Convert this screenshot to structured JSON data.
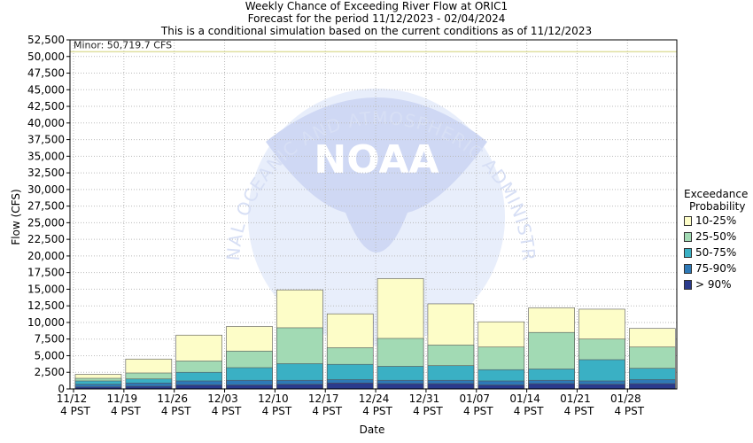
{
  "title_lines": [
    "Weekly Chance of Exceeding River Flow at ORIC1",
    "Forecast for the period 11/12/2023 - 02/04/2024",
    "This is a conditional simulation based on the current conditions as of 11/12/2023"
  ],
  "watermark": {
    "arc_text_top": "NATIONAL OCEANIC AND ATMOSPHERIC ADMINISTRATION",
    "center_text": "NOAA"
  },
  "chart_data": {
    "type": "bar",
    "stacked": true,
    "xlabel": "Date",
    "ylabel": "Flow (CFS)",
    "ylim": [
      0,
      52500
    ],
    "ytick_step": 2500,
    "grid": true,
    "categories": [
      "11/12",
      "11/19",
      "11/26",
      "12/03",
      "12/10",
      "12/17",
      "12/24",
      "12/31",
      "01/07",
      "01/14",
      "01/21",
      "01/28"
    ],
    "x_tick_labels": [
      [
        "11/12",
        "4 PST"
      ],
      [
        "11/19",
        "4 PST"
      ],
      [
        "11/26",
        "4 PST"
      ],
      [
        "12/03",
        "4 PST"
      ],
      [
        "12/10",
        "4 PST"
      ],
      [
        "12/17",
        "4 PST"
      ],
      [
        "12/24",
        "4 PST"
      ],
      [
        "12/31",
        "4 PST"
      ],
      [
        "01/07",
        "4 PST"
      ],
      [
        "01/14",
        "4 PST"
      ],
      [
        "01/21",
        "4 PST"
      ],
      [
        "01/28",
        "4 PST"
      ]
    ],
    "series": [
      {
        "name": "> 90%",
        "color": "#2a3a8c",
        "values": [
          300,
          400,
          600,
          600,
          700,
          900,
          800,
          800,
          600,
          800,
          700,
          800
        ]
      },
      {
        "name": "75-90%",
        "color": "#2e79b6",
        "values": [
          700,
          900,
          1200,
          1300,
          1300,
          1400,
          1300,
          1300,
          1200,
          1300,
          1200,
          1400
        ]
      },
      {
        "name": "50-75%",
        "color": "#3ab0c4",
        "values": [
          1200,
          1500,
          2500,
          3200,
          3800,
          3700,
          3400,
          3500,
          2900,
          3000,
          4400,
          3100
        ]
      },
      {
        "name": "25-50%",
        "color": "#a2dab4",
        "values": [
          1600,
          2400,
          4200,
          5700,
          9200,
          6200,
          7600,
          6600,
          6300,
          8500,
          7500,
          6300
        ]
      },
      {
        "name": "10-25%",
        "color": "#fdfdc8",
        "values": [
          2200,
          4500,
          8100,
          9400,
          14900,
          11300,
          16600,
          12800,
          10100,
          12200,
          12000,
          9100
        ]
      }
    ],
    "threshold": {
      "label": "Minor: 50,719.7 CFS",
      "value": 50719.7,
      "color": "#e0e0a0"
    },
    "legend": {
      "title_line1": "Exceedance",
      "title_line2": "Probability",
      "placement": "right",
      "items": [
        {
          "label": "10-25%",
          "color": "#fdfdc8"
        },
        {
          "label": "25-50%",
          "color": "#a2dab4"
        },
        {
          "label": "50-75%",
          "color": "#3ab0c4"
        },
        {
          "label": "75-90%",
          "color": "#2e79b6"
        },
        {
          "label": "> 90%",
          "color": "#2a3a8c"
        }
      ]
    }
  }
}
